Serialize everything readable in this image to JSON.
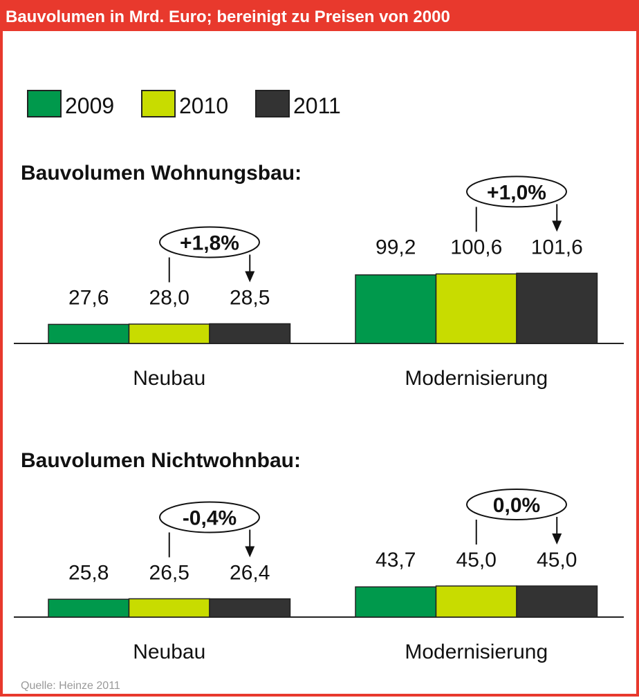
{
  "title": "Bauvolumen in Mrd. Euro; bereinigt zu Preisen von 2000",
  "source": "Quelle: Heinze 2011",
  "chart_data": [
    {
      "type": "bar",
      "title": "Bauvolumen Wohnungsbau:",
      "categories": [
        "Neubau",
        "Modernisierung"
      ],
      "series": [
        {
          "name": "2009",
          "color": "#00994c",
          "values": [
            27.6,
            99.2
          ],
          "value_labels": [
            "27,6",
            "99,2"
          ]
        },
        {
          "name": "2010",
          "color": "#c8dc00",
          "values": [
            28.0,
            100.6
          ],
          "value_labels": [
            "28,0",
            "100,6"
          ]
        },
        {
          "name": "2011",
          "color": "#333333",
          "values": [
            28.5,
            101.6
          ],
          "value_labels": [
            "28,5",
            "101,6"
          ]
        }
      ],
      "annotations": [
        "+1,8%",
        "+1,0%"
      ]
    },
    {
      "type": "bar",
      "title": "Bauvolumen Nichtwohnbau:",
      "categories": [
        "Neubau",
        "Modernisierung"
      ],
      "series": [
        {
          "color": "#00994c",
          "values": [
            25.8,
            43.7
          ],
          "value_labels": [
            "25,8",
            "43,7"
          ]
        },
        {
          "color": "#c8dc00",
          "values": [
            26.5,
            45.0
          ],
          "value_labels": [
            "26,5",
            "45,0"
          ]
        },
        {
          "color": "#333333",
          "values": [
            26.4,
            45.0
          ],
          "value_labels": [
            "26,4",
            "45,0"
          ]
        }
      ],
      "annotations": [
        "-0,4%",
        "0,0%"
      ]
    }
  ]
}
